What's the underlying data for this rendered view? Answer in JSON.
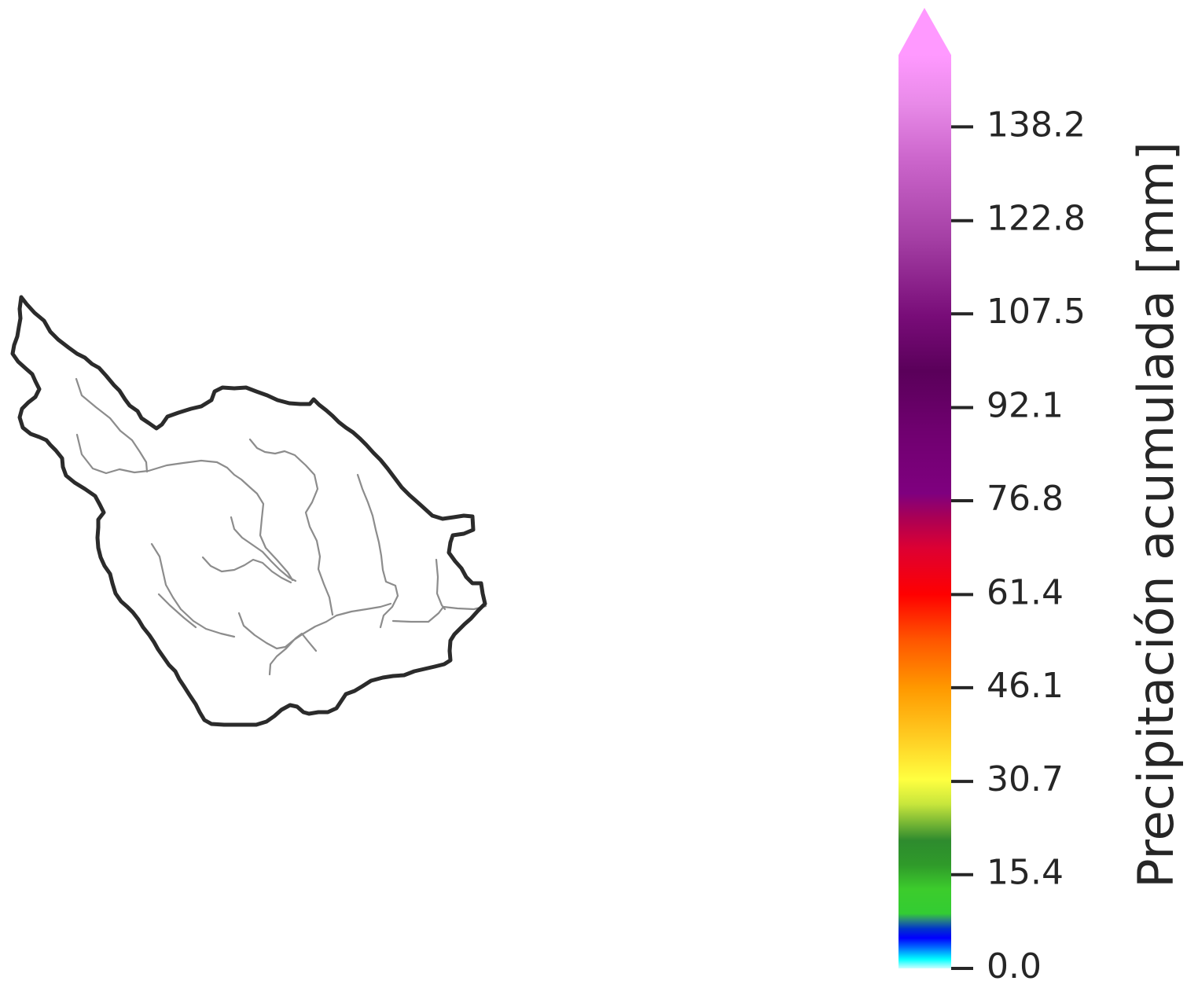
{
  "colorbar": {
    "label": "Precipitación acumulada [mm]",
    "min": 0.0,
    "max": 150,
    "extend": "max",
    "ticks": [
      0.0,
      15.4,
      30.7,
      46.1,
      61.4,
      76.8,
      92.1,
      107.5,
      122.8,
      138.2
    ],
    "tick_labels": [
      "0.0",
      "15.4",
      "30.7",
      "46.1",
      "61.4",
      "76.8",
      "92.1",
      "107.5",
      "122.8",
      "138.2"
    ],
    "colors": {
      "over": "#ff99ff",
      "stops": [
        {
          "value": 0.0,
          "color": "#ccffff"
        },
        {
          "value": 1.5,
          "color": "#00ffff"
        },
        {
          "value": 3.5,
          "color": "#0066ff"
        },
        {
          "value": 5.0,
          "color": "#0000ff"
        },
        {
          "value": 6.5,
          "color": "#0033cc"
        },
        {
          "value": 8.0,
          "color": "#2a8a7a"
        },
        {
          "value": 9.0,
          "color": "#33cc33"
        },
        {
          "value": 13.0,
          "color": "#3ccc2c"
        },
        {
          "value": 17.0,
          "color": "#2f9a2a"
        },
        {
          "value": 21.0,
          "color": "#2e8b2e"
        },
        {
          "value": 27.0,
          "color": "#c8e63c"
        },
        {
          "value": 31.0,
          "color": "#ffff40"
        },
        {
          "value": 38.0,
          "color": "#ffcc22"
        },
        {
          "value": 46.0,
          "color": "#ff9900"
        },
        {
          "value": 54.0,
          "color": "#ff5500"
        },
        {
          "value": 61.4,
          "color": "#ff0000"
        },
        {
          "value": 69.0,
          "color": "#dd0033"
        },
        {
          "value": 74.0,
          "color": "#aa0055"
        },
        {
          "value": 78.0,
          "color": "#7f007f"
        },
        {
          "value": 88.0,
          "color": "#700070"
        },
        {
          "value": 98.0,
          "color": "#5a005a"
        },
        {
          "value": 107.0,
          "color": "#780c78"
        },
        {
          "value": 120.0,
          "color": "#a540a5"
        },
        {
          "value": 133.0,
          "color": "#cc66cc"
        },
        {
          "value": 142.0,
          "color": "#e88ae8"
        },
        {
          "value": 150.0,
          "color": "#ff99ff"
        }
      ]
    }
  },
  "map": {
    "basin_outline_color": "#2b2b2b",
    "river_color": "#8c8c8c",
    "fill_color": "#ffffff"
  }
}
